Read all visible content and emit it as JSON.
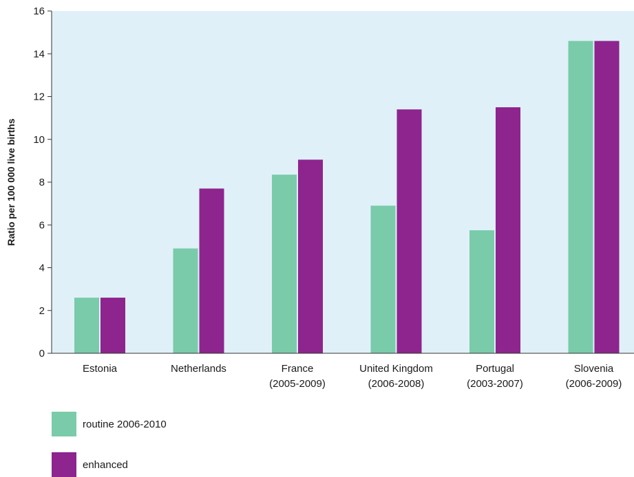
{
  "chart_data": {
    "type": "bar",
    "categories": [
      [
        "Estonia"
      ],
      [
        "Netherlands"
      ],
      [
        "France",
        "(2005-2009)"
      ],
      [
        "United Kingdom",
        "(2006-2008)"
      ],
      [
        "Portugal",
        "(2003-2007)"
      ],
      [
        "Slovenia",
        "(2006-2009)"
      ]
    ],
    "series": [
      {
        "name": "routine 2006-2010",
        "color": "#7ACBAA",
        "values": [
          2.6,
          4.9,
          8.35,
          6.9,
          5.75,
          14.6
        ]
      },
      {
        "name": "enhanced",
        "color": "#8E248E",
        "values": [
          2.6,
          7.7,
          9.05,
          11.4,
          11.5,
          14.6
        ]
      }
    ],
    "ylabel": "Ratio per  100 000 live births",
    "ylim": [
      0,
      16
    ],
    "yticks": [
      0,
      2,
      4,
      6,
      8,
      10,
      12,
      14,
      16
    ],
    "plot_background": "#DFF0F8",
    "grid": false,
    "legend_position": "bottom-left"
  }
}
